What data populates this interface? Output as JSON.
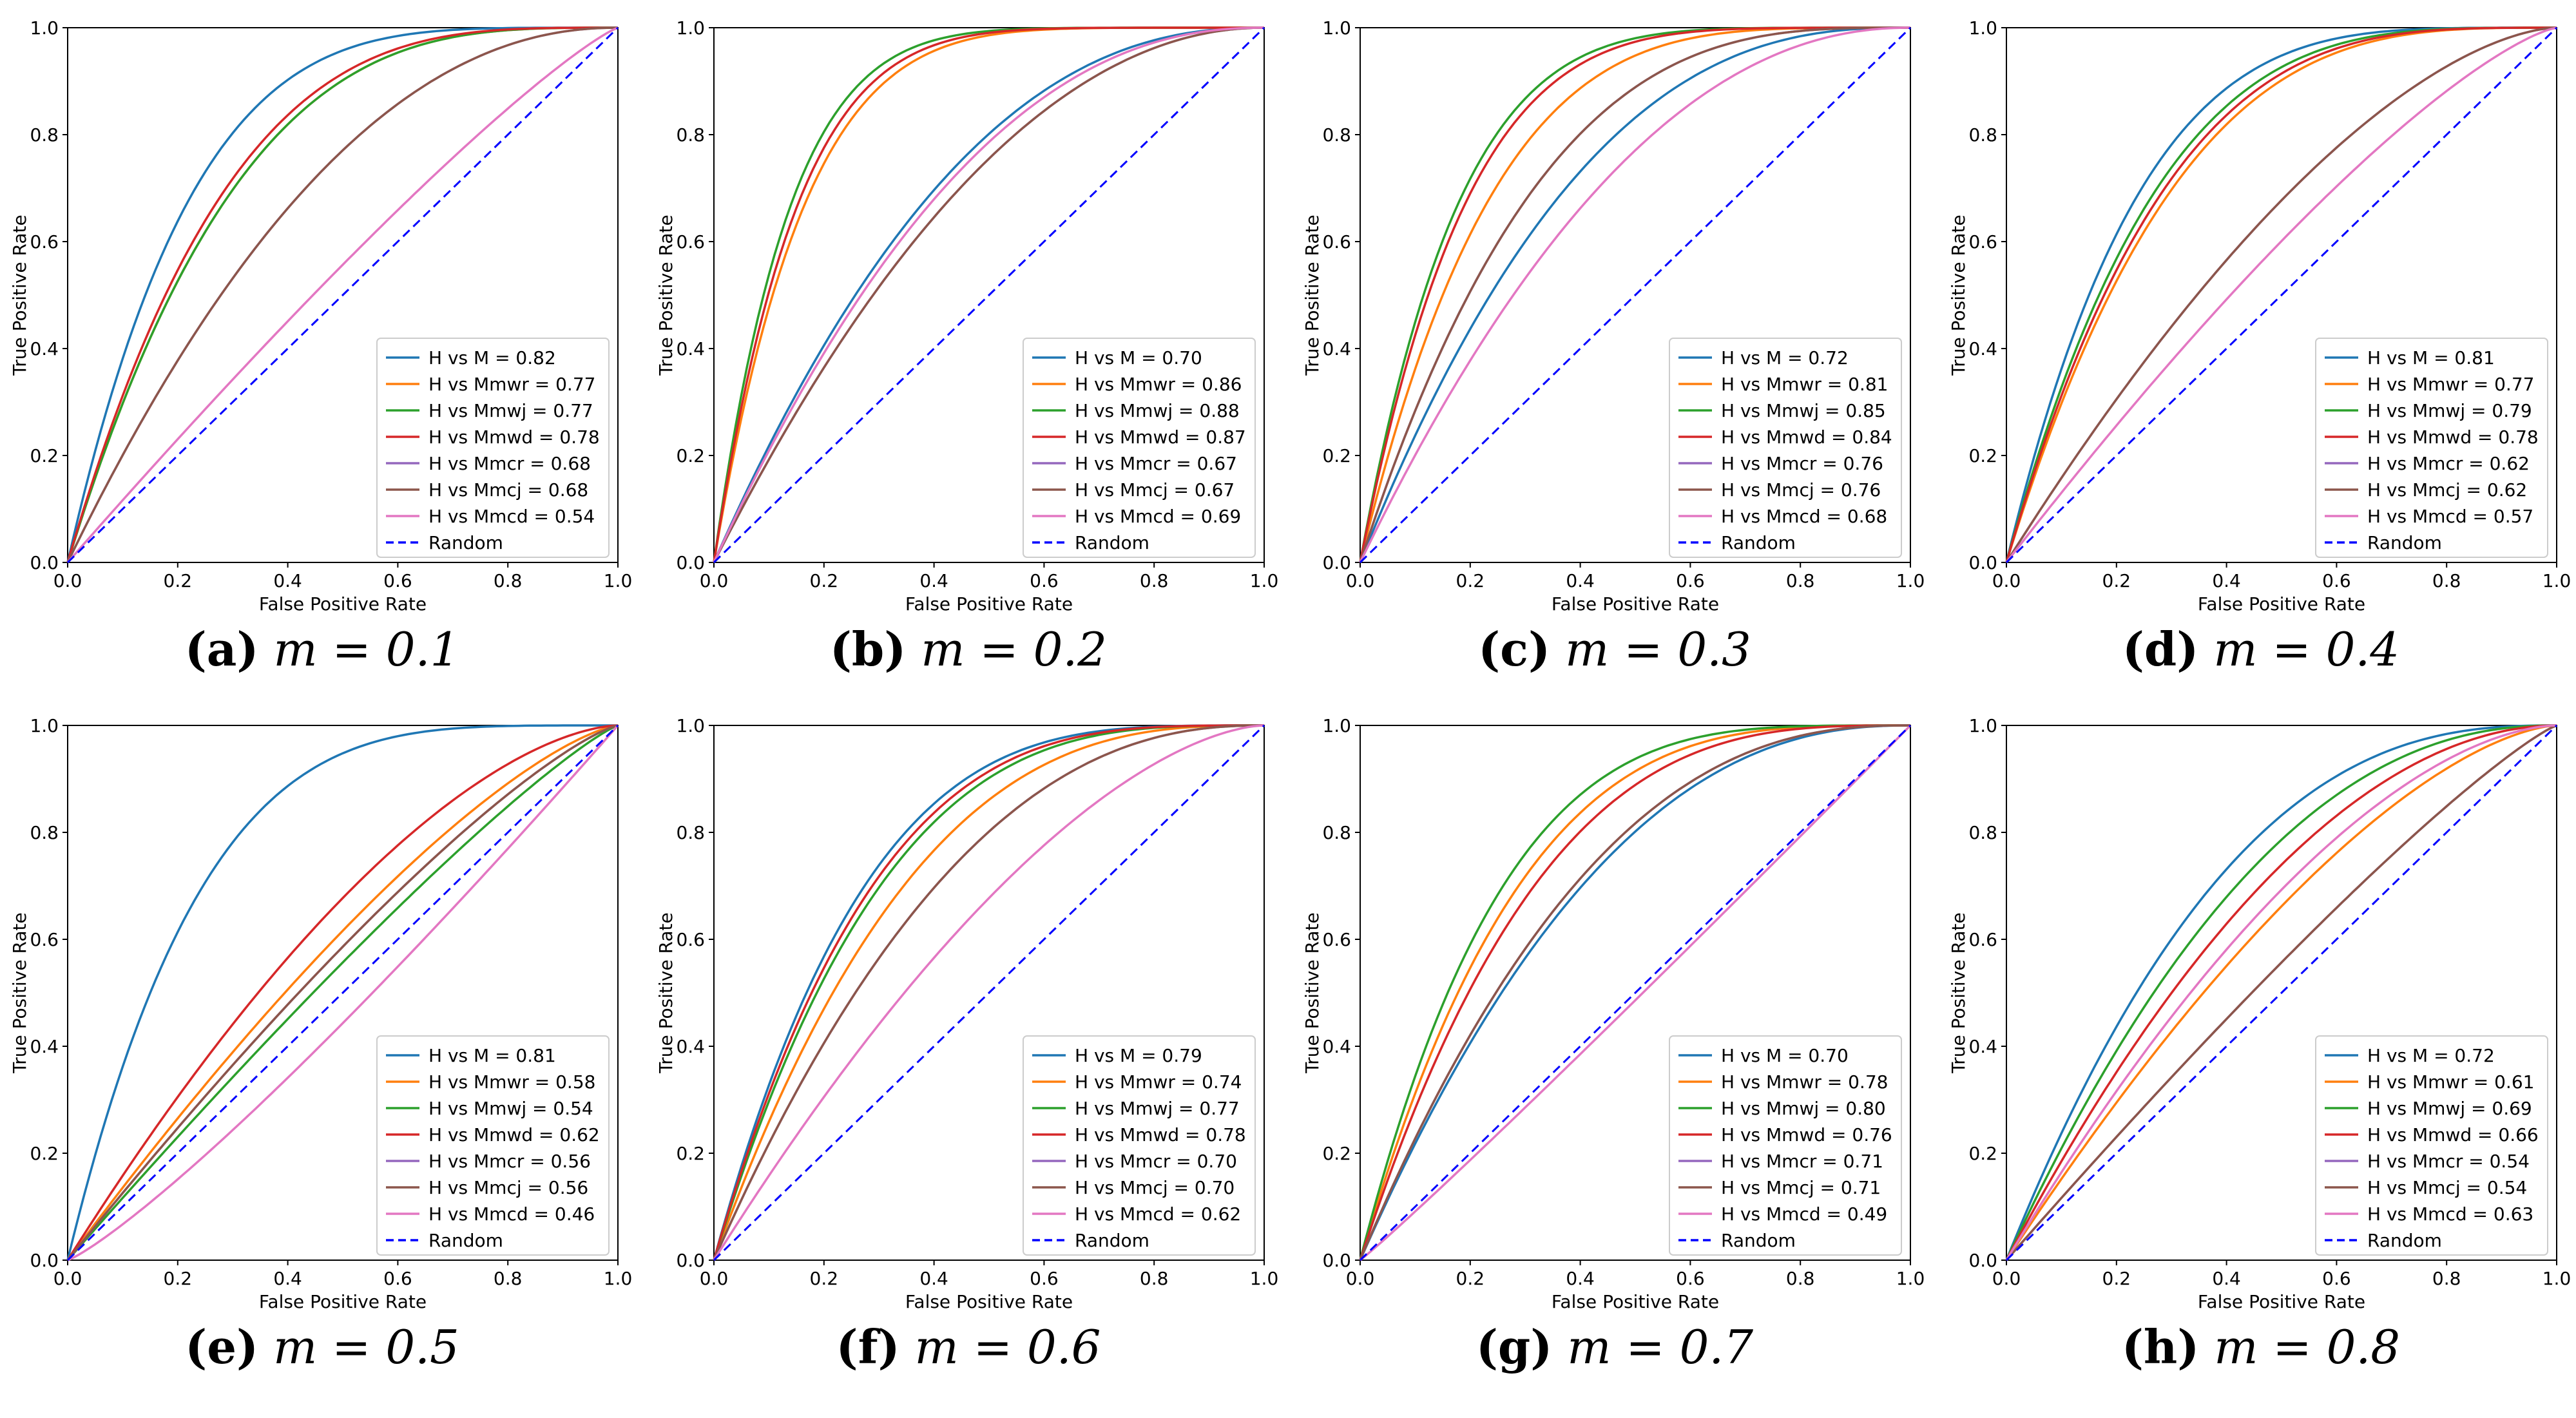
{
  "common": {
    "xlabel": "False Positive Rate",
    "ylabel": "True Positive Rate",
    "ticks": [
      "0.0",
      "0.2",
      "0.4",
      "0.6",
      "0.8",
      "1.0"
    ],
    "random_label": "Random",
    "colors": {
      "M": "#1f77b4",
      "Mmwr": "#ff7f0e",
      "Mmwj": "#2ca02c",
      "Mmwd": "#d62728",
      "Mmcr": "#9467bd",
      "Mmcj": "#8c564b",
      "Mmcd": "#e377c2",
      "Random": "#0000ff"
    }
  },
  "chart_data": [
    {
      "type": "line",
      "caption_letter": "(a)",
      "caption_value": "m = 0.1",
      "xlabel": "False Positive Rate",
      "ylabel": "True Positive Rate",
      "xlim": [
        0,
        1
      ],
      "ylim": [
        0,
        1
      ],
      "legend": "lower-right",
      "series": [
        {
          "name": "H vs M = 0.82",
          "key": "M",
          "auc": 0.82
        },
        {
          "name": "H vs Mmwr = 0.77",
          "key": "Mmwr",
          "auc": 0.77
        },
        {
          "name": "H vs Mmwj = 0.77",
          "key": "Mmwj",
          "auc": 0.77
        },
        {
          "name": "H vs Mmwd = 0.78",
          "key": "Mmwd",
          "auc": 0.78
        },
        {
          "name": "H vs Mmcr = 0.68",
          "key": "Mmcr",
          "auc": 0.68
        },
        {
          "name": "H vs Mmcj = 0.68",
          "key": "Mmcj",
          "auc": 0.68
        },
        {
          "name": "H vs Mmcd = 0.54",
          "key": "Mmcd",
          "auc": 0.54
        },
        {
          "name": "Random",
          "key": "Random",
          "dashed": true
        }
      ]
    },
    {
      "type": "line",
      "caption_letter": "(b)",
      "caption_value": "m = 0.2",
      "xlabel": "False Positive Rate",
      "ylabel": "True Positive Rate",
      "xlim": [
        0,
        1
      ],
      "ylim": [
        0,
        1
      ],
      "legend": "lower-right",
      "series": [
        {
          "name": "H vs M = 0.70",
          "key": "M",
          "auc": 0.7
        },
        {
          "name": "H vs Mmwr = 0.86",
          "key": "Mmwr",
          "auc": 0.86
        },
        {
          "name": "H vs Mmwj = 0.88",
          "key": "Mmwj",
          "auc": 0.88
        },
        {
          "name": "H vs Mmwd = 0.87",
          "key": "Mmwd",
          "auc": 0.87
        },
        {
          "name": "H vs Mmcr = 0.67",
          "key": "Mmcr",
          "auc": 0.67
        },
        {
          "name": "H vs Mmcj = 0.67",
          "key": "Mmcj",
          "auc": 0.67
        },
        {
          "name": "H vs Mmcd = 0.69",
          "key": "Mmcd",
          "auc": 0.69
        },
        {
          "name": "Random",
          "key": "Random",
          "dashed": true
        }
      ]
    },
    {
      "type": "line",
      "caption_letter": "(c)",
      "caption_value": "m = 0.3",
      "xlabel": "False Positive Rate",
      "ylabel": "True Positive Rate",
      "xlim": [
        0,
        1
      ],
      "ylim": [
        0,
        1
      ],
      "legend": "lower-right",
      "series": [
        {
          "name": "H vs M = 0.72",
          "key": "M",
          "auc": 0.72
        },
        {
          "name": "H vs Mmwr = 0.81",
          "key": "Mmwr",
          "auc": 0.81
        },
        {
          "name": "H vs Mmwj = 0.85",
          "key": "Mmwj",
          "auc": 0.85
        },
        {
          "name": "H vs Mmwd = 0.84",
          "key": "Mmwd",
          "auc": 0.84
        },
        {
          "name": "H vs Mmcr = 0.76",
          "key": "Mmcr",
          "auc": 0.76
        },
        {
          "name": "H vs Mmcj = 0.76",
          "key": "Mmcj",
          "auc": 0.76
        },
        {
          "name": "H vs Mmcd = 0.68",
          "key": "Mmcd",
          "auc": 0.68
        },
        {
          "name": "Random",
          "key": "Random",
          "dashed": true
        }
      ]
    },
    {
      "type": "line",
      "caption_letter": "(d)",
      "caption_value": "m = 0.4",
      "xlabel": "False Positive Rate",
      "ylabel": "True Positive Rate",
      "xlim": [
        0,
        1
      ],
      "ylim": [
        0,
        1
      ],
      "legend": "lower-right",
      "series": [
        {
          "name": "H vs M = 0.81",
          "key": "M",
          "auc": 0.81
        },
        {
          "name": "H vs Mmwr = 0.77",
          "key": "Mmwr",
          "auc": 0.77
        },
        {
          "name": "H vs Mmwj = 0.79",
          "key": "Mmwj",
          "auc": 0.79
        },
        {
          "name": "H vs Mmwd = 0.78",
          "key": "Mmwd",
          "auc": 0.78
        },
        {
          "name": "H vs Mmcr = 0.62",
          "key": "Mmcr",
          "auc": 0.62
        },
        {
          "name": "H vs Mmcj = 0.62",
          "key": "Mmcj",
          "auc": 0.62
        },
        {
          "name": "H vs Mmcd = 0.57",
          "key": "Mmcd",
          "auc": 0.57
        },
        {
          "name": "Random",
          "key": "Random",
          "dashed": true
        }
      ]
    },
    {
      "type": "line",
      "caption_letter": "(e)",
      "caption_value": "m = 0.5",
      "xlabel": "False Positive Rate",
      "ylabel": "True Positive Rate",
      "xlim": [
        0,
        1
      ],
      "ylim": [
        0,
        1
      ],
      "legend": "lower-right",
      "series": [
        {
          "name": "H vs M = 0.81",
          "key": "M",
          "auc": 0.81
        },
        {
          "name": "H vs Mmwr = 0.58",
          "key": "Mmwr",
          "auc": 0.58
        },
        {
          "name": "H vs Mmwj = 0.54",
          "key": "Mmwj",
          "auc": 0.54
        },
        {
          "name": "H vs Mmwd = 0.62",
          "key": "Mmwd",
          "auc": 0.62
        },
        {
          "name": "H vs Mmcr = 0.56",
          "key": "Mmcr",
          "auc": 0.56
        },
        {
          "name": "H vs Mmcj = 0.56",
          "key": "Mmcj",
          "auc": 0.56
        },
        {
          "name": "H vs Mmcd = 0.46",
          "key": "Mmcd",
          "auc": 0.46
        },
        {
          "name": "Random",
          "key": "Random",
          "dashed": true
        }
      ]
    },
    {
      "type": "line",
      "caption_letter": "(f)",
      "caption_value": "m = 0.6",
      "xlabel": "False Positive Rate",
      "ylabel": "True Positive Rate",
      "xlim": [
        0,
        1
      ],
      "ylim": [
        0,
        1
      ],
      "legend": "lower-right",
      "series": [
        {
          "name": "H vs M = 0.79",
          "key": "M",
          "auc": 0.79
        },
        {
          "name": "H vs Mmwr = 0.74",
          "key": "Mmwr",
          "auc": 0.74
        },
        {
          "name": "H vs Mmwj = 0.77",
          "key": "Mmwj",
          "auc": 0.77
        },
        {
          "name": "H vs Mmwd = 0.78",
          "key": "Mmwd",
          "auc": 0.78
        },
        {
          "name": "H vs Mmcr = 0.70",
          "key": "Mmcr",
          "auc": 0.7
        },
        {
          "name": "H vs Mmcj = 0.70",
          "key": "Mmcj",
          "auc": 0.7
        },
        {
          "name": "H vs Mmcd = 0.62",
          "key": "Mmcd",
          "auc": 0.62
        },
        {
          "name": "Random",
          "key": "Random",
          "dashed": true
        }
      ]
    },
    {
      "type": "line",
      "caption_letter": "(g)",
      "caption_value": "m = 0.7",
      "xlabel": "False Positive Rate",
      "ylabel": "True Positive Rate",
      "xlim": [
        0,
        1
      ],
      "ylim": [
        0,
        1
      ],
      "legend": "lower-right",
      "series": [
        {
          "name": "H vs M = 0.70",
          "key": "M",
          "auc": 0.7
        },
        {
          "name": "H vs Mmwr = 0.78",
          "key": "Mmwr",
          "auc": 0.78
        },
        {
          "name": "H vs Mmwj = 0.80",
          "key": "Mmwj",
          "auc": 0.8
        },
        {
          "name": "H vs Mmwd = 0.76",
          "key": "Mmwd",
          "auc": 0.76
        },
        {
          "name": "H vs Mmcr = 0.71",
          "key": "Mmcr",
          "auc": 0.71
        },
        {
          "name": "H vs Mmcj = 0.71",
          "key": "Mmcj",
          "auc": 0.71
        },
        {
          "name": "H vs Mmcd = 0.49",
          "key": "Mmcd",
          "auc": 0.49
        },
        {
          "name": "Random",
          "key": "Random",
          "dashed": true
        }
      ]
    },
    {
      "type": "line",
      "caption_letter": "(h)",
      "caption_value": "m = 0.8",
      "xlabel": "False Positive Rate",
      "ylabel": "True Positive Rate",
      "xlim": [
        0,
        1
      ],
      "ylim": [
        0,
        1
      ],
      "legend": "lower-right",
      "series": [
        {
          "name": "H vs M = 0.72",
          "key": "M",
          "auc": 0.72
        },
        {
          "name": "H vs Mmwr = 0.61",
          "key": "Mmwr",
          "auc": 0.61
        },
        {
          "name": "H vs Mmwj = 0.69",
          "key": "Mmwj",
          "auc": 0.69
        },
        {
          "name": "H vs Mmwd = 0.66",
          "key": "Mmwd",
          "auc": 0.66
        },
        {
          "name": "H vs Mmcr = 0.54",
          "key": "Mmcr",
          "auc": 0.54
        },
        {
          "name": "H vs Mmcj = 0.54",
          "key": "Mmcj",
          "auc": 0.54
        },
        {
          "name": "H vs Mmcd = 0.63",
          "key": "Mmcd",
          "auc": 0.63
        },
        {
          "name": "Random",
          "key": "Random",
          "dashed": true
        }
      ]
    }
  ]
}
